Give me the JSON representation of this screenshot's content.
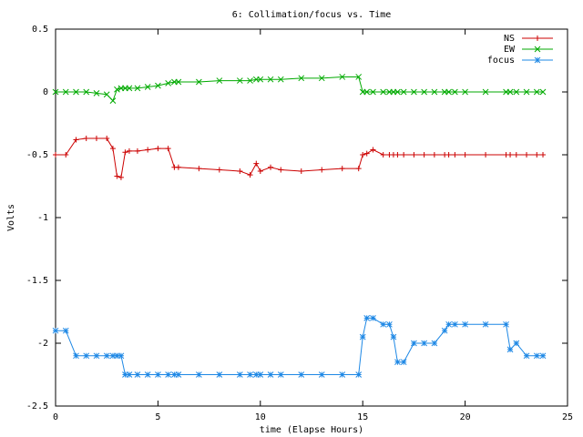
{
  "chart_data": {
    "type": "line",
    "title": "6: Collimation/focus vs. Time",
    "x_label": "time (Elapse Hours)",
    "y_label": "Volts",
    "x": [
      0,
      0.5,
      1,
      1.5,
      2,
      2.5,
      2.8,
      3,
      3.2,
      3.4,
      3.6,
      4,
      4.5,
      5,
      5.5,
      5.8,
      6,
      7,
      8,
      9,
      9.5,
      9.8,
      10,
      10.5,
      11,
      12,
      13,
      14,
      14.8,
      15,
      15.2,
      15.5,
      16,
      16.3,
      16.5,
      16.7,
      17,
      17.5,
      18,
      18.5,
      19,
      19.2,
      19.5,
      20,
      21,
      22,
      22.2,
      22.5,
      23,
      23.5,
      23.8
    ],
    "series": [
      {
        "name": "NS",
        "color": "#cc0000",
        "marker": "plus",
        "values": [
          -0.5,
          -0.5,
          -0.38,
          -0.37,
          -0.37,
          -0.37,
          -0.45,
          -0.67,
          -0.68,
          -0.48,
          -0.47,
          -0.47,
          -0.46,
          -0.45,
          -0.45,
          -0.6,
          -0.6,
          -0.61,
          -0.62,
          -0.63,
          -0.66,
          -0.57,
          -0.63,
          -0.6,
          -0.62,
          -0.63,
          -0.62,
          -0.61,
          -0.61,
          -0.5,
          -0.49,
          -0.46,
          -0.5,
          -0.5,
          -0.5,
          -0.5,
          -0.5,
          -0.5,
          -0.5,
          -0.5,
          -0.5,
          -0.5,
          -0.5,
          -0.5,
          -0.5,
          -0.5,
          -0.5,
          -0.5,
          -0.5,
          -0.5,
          -0.5
        ]
      },
      {
        "name": "EW",
        "color": "#00aa00",
        "marker": "cross",
        "values": [
          0,
          0,
          0,
          0,
          -0.01,
          -0.02,
          -0.07,
          0.02,
          0.03,
          0.03,
          0.03,
          0.03,
          0.04,
          0.05,
          0.07,
          0.08,
          0.08,
          0.08,
          0.09,
          0.09,
          0.09,
          0.1,
          0.1,
          0.1,
          0.1,
          0.11,
          0.11,
          0.12,
          0.12,
          0,
          0,
          0,
          0,
          0,
          0,
          0,
          0,
          0,
          0,
          0,
          0,
          0,
          0,
          0,
          0,
          0,
          0,
          0,
          0,
          0,
          0
        ]
      },
      {
        "name": "focus",
        "color": "#1e88e5",
        "marker": "star",
        "values": [
          -1.9,
          -1.9,
          -2.1,
          -2.1,
          -2.1,
          -2.1,
          -2.1,
          -2.1,
          -2.1,
          -2.25,
          -2.25,
          -2.25,
          -2.25,
          -2.25,
          -2.25,
          -2.25,
          -2.25,
          -2.25,
          -2.25,
          -2.25,
          -2.25,
          -2.25,
          -2.25,
          -2.25,
          -2.25,
          -2.25,
          -2.25,
          -2.25,
          -2.25,
          -1.95,
          -1.8,
          -1.8,
          -1.85,
          -1.85,
          -1.95,
          -2.15,
          -2.15,
          -2,
          -2,
          -2,
          -1.9,
          -1.85,
          -1.85,
          -1.85,
          -1.85,
          -1.85,
          -2.05,
          -2,
          -2.1,
          -2.1,
          -2.1
        ]
      }
    ],
    "xlim": [
      0,
      25
    ],
    "xticks": [
      0,
      5,
      10,
      15,
      20,
      25
    ],
    "ylim": [
      -2.5,
      0.5
    ],
    "yticks": [
      0.5,
      0,
      -0.5,
      -1,
      -1.5,
      -2,
      -2.5
    ],
    "grid": false,
    "legend": "top-right"
  }
}
